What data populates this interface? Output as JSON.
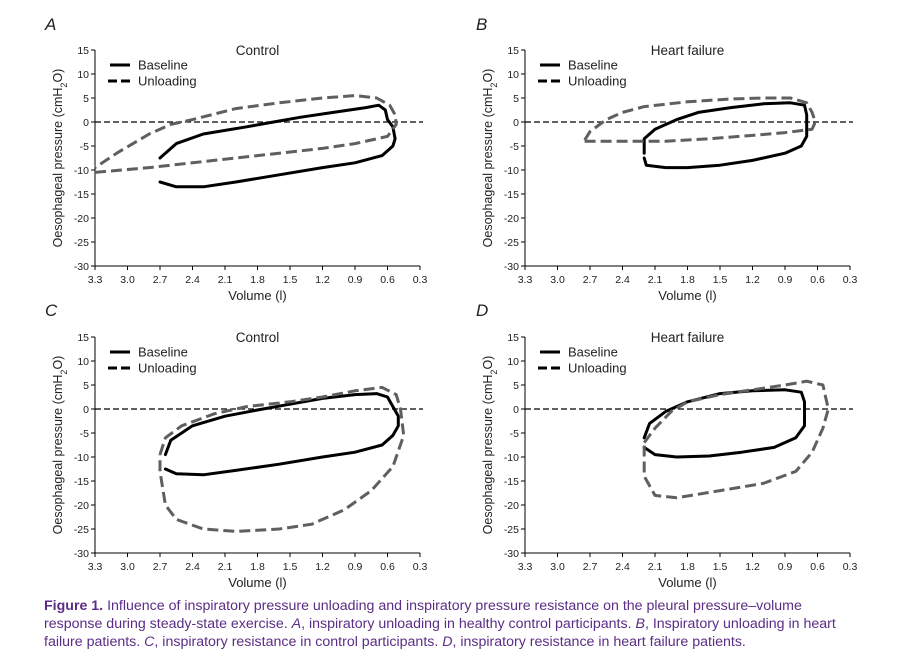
{
  "chart_data": [
    {
      "type": "line",
      "panel_label": "A",
      "title": "Control",
      "xlabel": "Volume (l)",
      "ylabel": "Oesophageal pressure (cmH2O)",
      "xlim": [
        3.3,
        0.3
      ],
      "ylim": [
        -30,
        15
      ],
      "x_ticks": [
        "3.3",
        "3.0",
        "2.7",
        "2.4",
        "2.1",
        "1.8",
        "1.5",
        "1.2",
        "0.9",
        "0.6",
        "0.3"
      ],
      "y_ticks": [
        "15",
        "10",
        "5",
        "0",
        "-5",
        "-10",
        "-15",
        "-20",
        "-25",
        "-30"
      ],
      "reference_line_y": 0,
      "legend": "top-left",
      "series": [
        {
          "name": "Baseline",
          "style": "solid",
          "color": "#000000",
          "points": [
            [
              2.7,
              -12.5
            ],
            [
              2.55,
              -13.5
            ],
            [
              2.3,
              -13.5
            ],
            [
              2.0,
              -12.5
            ],
            [
              1.6,
              -11
            ],
            [
              1.2,
              -9.5
            ],
            [
              0.9,
              -8.5
            ],
            [
              0.65,
              -7
            ],
            [
              0.55,
              -5
            ],
            [
              0.53,
              -3.5
            ],
            [
              0.55,
              -1
            ],
            [
              0.6,
              0.5
            ],
            [
              0.62,
              2.5
            ],
            [
              0.68,
              3.5
            ],
            [
              0.8,
              3
            ],
            [
              1.1,
              2
            ],
            [
              1.4,
              1
            ],
            [
              1.6,
              0.2
            ],
            [
              1.9,
              -1
            ],
            [
              2.3,
              -2.5
            ],
            [
              2.55,
              -4.5
            ],
            [
              2.7,
              -7.5
            ]
          ]
        },
        {
          "name": "Unloading",
          "style": "dashed",
          "color": "#5f5f5f",
          "points": [
            [
              3.3,
              -10.5
            ],
            [
              2.8,
              -9.5
            ],
            [
              2.4,
              -8.5
            ],
            [
              2.0,
              -7.5
            ],
            [
              1.6,
              -6.5
            ],
            [
              1.2,
              -5.5
            ],
            [
              0.9,
              -4.5
            ],
            [
              0.6,
              -3
            ],
            [
              0.52,
              -0.5
            ],
            [
              0.53,
              1.5
            ],
            [
              0.58,
              3.5
            ],
            [
              0.7,
              5
            ],
            [
              0.9,
              5.5
            ],
            [
              1.2,
              5
            ],
            [
              1.6,
              4
            ],
            [
              2.0,
              2.8
            ],
            [
              2.4,
              0.5
            ],
            [
              2.6,
              -0.5
            ],
            [
              2.8,
              -2.5
            ],
            [
              3.1,
              -6.5
            ],
            [
              3.3,
              -9.5
            ]
          ]
        }
      ]
    },
    {
      "type": "line",
      "panel_label": "B",
      "title": "Heart failure",
      "xlabel": "Volume (l)",
      "ylabel": "Oesophageal pressure (cmH2O)",
      "xlim": [
        3.3,
        0.3
      ],
      "ylim": [
        -30,
        15
      ],
      "x_ticks": [
        "3.3",
        "3.0",
        "2.7",
        "2.4",
        "2.1",
        "1.8",
        "1.5",
        "1.2",
        "0.9",
        "0.6",
        "0.3"
      ],
      "y_ticks": [
        "15",
        "10",
        "5",
        "0",
        "-5",
        "-10",
        "-15",
        "-20",
        "-25",
        "-30"
      ],
      "reference_line_y": 0,
      "legend": "top-left",
      "series": [
        {
          "name": "Baseline",
          "style": "solid",
          "color": "#000000",
          "points": [
            [
              2.2,
              -7.5
            ],
            [
              2.18,
              -9
            ],
            [
              2.0,
              -9.5
            ],
            [
              1.8,
              -9.5
            ],
            [
              1.5,
              -9
            ],
            [
              1.2,
              -8
            ],
            [
              0.9,
              -6.5
            ],
            [
              0.75,
              -5
            ],
            [
              0.7,
              -3
            ],
            [
              0.7,
              -1
            ],
            [
              0.7,
              1.5
            ],
            [
              0.72,
              3.5
            ],
            [
              0.85,
              4
            ],
            [
              1.1,
              3.8
            ],
            [
              1.4,
              3
            ],
            [
              1.7,
              2
            ],
            [
              1.9,
              0.5
            ],
            [
              2.1,
              -1.5
            ],
            [
              2.2,
              -3.5
            ],
            [
              2.2,
              -6.5
            ]
          ]
        },
        {
          "name": "Unloading",
          "style": "dashed",
          "color": "#5f5f5f",
          "points": [
            [
              2.75,
              -4
            ],
            [
              2.4,
              -4
            ],
            [
              2.0,
              -4
            ],
            [
              1.6,
              -3.5
            ],
            [
              1.2,
              -2.8
            ],
            [
              0.9,
              -2.2
            ],
            [
              0.65,
              -1.5
            ],
            [
              0.62,
              0
            ],
            [
              0.65,
              2
            ],
            [
              0.7,
              4
            ],
            [
              0.85,
              5
            ],
            [
              1.1,
              5
            ],
            [
              1.4,
              4.8
            ],
            [
              1.8,
              4.2
            ],
            [
              2.2,
              3.2
            ],
            [
              2.4,
              2
            ],
            [
              2.55,
              0.5
            ],
            [
              2.7,
              -2
            ],
            [
              2.75,
              -3.8
            ]
          ]
        }
      ]
    },
    {
      "type": "line",
      "panel_label": "C",
      "title": "Control",
      "xlabel": "Volume (l)",
      "ylabel": "Oesophageal pressure (cmH2O)",
      "xlim": [
        3.3,
        0.3
      ],
      "ylim": [
        -30,
        15
      ],
      "x_ticks": [
        "3.3",
        "3.0",
        "2.7",
        "2.4",
        "2.1",
        "1.8",
        "1.5",
        "1.2",
        "0.9",
        "0.6",
        "0.3"
      ],
      "y_ticks": [
        "15",
        "10",
        "5",
        "0",
        "-5",
        "-10",
        "-15",
        "-20",
        "-25",
        "-30"
      ],
      "reference_line_y": 0,
      "legend": "top-left",
      "series": [
        {
          "name": "Baseline",
          "style": "solid",
          "color": "#000000",
          "points": [
            [
              2.65,
              -12.5
            ],
            [
              2.55,
              -13.5
            ],
            [
              2.3,
              -13.7
            ],
            [
              2.0,
              -12.8
            ],
            [
              1.6,
              -11.5
            ],
            [
              1.2,
              -10
            ],
            [
              0.9,
              -9
            ],
            [
              0.65,
              -7.5
            ],
            [
              0.55,
              -5.5
            ],
            [
              0.5,
              -3.5
            ],
            [
              0.5,
              -1.5
            ],
            [
              0.55,
              0.5
            ],
            [
              0.6,
              2.5
            ],
            [
              0.7,
              3.2
            ],
            [
              0.9,
              3
            ],
            [
              1.2,
              2.2
            ],
            [
              1.5,
              1
            ],
            [
              1.8,
              -0.2
            ],
            [
              2.1,
              -1.5
            ],
            [
              2.4,
              -3.5
            ],
            [
              2.6,
              -6.5
            ],
            [
              2.65,
              -9.5
            ]
          ]
        },
        {
          "name": "Unloading",
          "style": "dashed",
          "color": "#5f5f5f",
          "points": [
            [
              2.7,
              -9.5
            ],
            [
              2.65,
              -6
            ],
            [
              2.5,
              -3.5
            ],
            [
              2.2,
              -1
            ],
            [
              1.9,
              0.5
            ],
            [
              1.5,
              1.5
            ],
            [
              1.2,
              2.5
            ],
            [
              0.9,
              3.8
            ],
            [
              0.65,
              4.5
            ],
            [
              0.52,
              3
            ],
            [
              0.48,
              0
            ],
            [
              0.45,
              -5.5
            ],
            [
              0.55,
              -12
            ],
            [
              0.75,
              -17
            ],
            [
              1.0,
              -21
            ],
            [
              1.3,
              -24
            ],
            [
              1.6,
              -25
            ],
            [
              2.0,
              -25.5
            ],
            [
              2.3,
              -25
            ],
            [
              2.55,
              -23
            ],
            [
              2.65,
              -20
            ],
            [
              2.7,
              -13
            ],
            [
              2.7,
              -9.5
            ]
          ]
        }
      ]
    },
    {
      "type": "line",
      "panel_label": "D",
      "title": "Heart failure",
      "xlabel": "Volume (l)",
      "ylabel": "Oesophageal pressure (cmH2O)",
      "xlim": [
        3.3,
        0.3
      ],
      "ylim": [
        -30,
        15
      ],
      "x_ticks": [
        "3.3",
        "3.0",
        "2.7",
        "2.4",
        "2.1",
        "1.8",
        "1.5",
        "1.2",
        "0.9",
        "0.6",
        "0.3"
      ],
      "y_ticks": [
        "15",
        "10",
        "5",
        "0",
        "-5",
        "-10",
        "-15",
        "-20",
        "-25",
        "-30"
      ],
      "reference_line_y": 0,
      "legend": "top-left",
      "series": [
        {
          "name": "Baseline",
          "style": "solid",
          "color": "#000000",
          "points": [
            [
              2.2,
              -8
            ],
            [
              2.1,
              -9.5
            ],
            [
              1.9,
              -10
            ],
            [
              1.6,
              -9.8
            ],
            [
              1.3,
              -9
            ],
            [
              1.0,
              -8
            ],
            [
              0.8,
              -6
            ],
            [
              0.72,
              -3.5
            ],
            [
              0.72,
              -1
            ],
            [
              0.72,
              1.5
            ],
            [
              0.75,
              3.5
            ],
            [
              0.9,
              4
            ],
            [
              1.2,
              3.8
            ],
            [
              1.5,
              3.2
            ],
            [
              1.8,
              1.5
            ],
            [
              2.0,
              -0.5
            ],
            [
              2.15,
              -3
            ],
            [
              2.2,
              -6
            ]
          ]
        },
        {
          "name": "Unloading",
          "style": "dashed",
          "color": "#5f5f5f",
          "points": [
            [
              2.2,
              -7
            ],
            [
              2.1,
              -4
            ],
            [
              1.95,
              -0.5
            ],
            [
              1.8,
              1.5
            ],
            [
              1.5,
              3
            ],
            [
              1.2,
              4
            ],
            [
              0.9,
              5
            ],
            [
              0.7,
              5.8
            ],
            [
              0.55,
              5
            ],
            [
              0.5,
              0
            ],
            [
              0.55,
              -4
            ],
            [
              0.65,
              -9
            ],
            [
              0.8,
              -13
            ],
            [
              1.1,
              -15.5
            ],
            [
              1.5,
              -17
            ],
            [
              1.9,
              -18.5
            ],
            [
              2.1,
              -18
            ],
            [
              2.2,
              -14
            ],
            [
              2.2,
              -7
            ]
          ]
        }
      ]
    }
  ],
  "legend_labels": {
    "baseline": "Baseline",
    "unloading": "Unloading"
  },
  "caption": {
    "label": "Figure 1.",
    "part1": " Influence of inspiratory pressure unloading and inspiratory pressure resistance on the pleural pressure–volume response during steady-state exercise. ",
    "a": "A",
    "part2": ", inspiratory unloading in healthy control participants. ",
    "b": "B",
    "part3": ", Inspiratory unloading in heart failure patients. ",
    "c": "C",
    "part4": ", inspiratory resistance in control participants. ",
    "d": "D",
    "part5": ", inspiratory resistance in heart failure patients."
  }
}
